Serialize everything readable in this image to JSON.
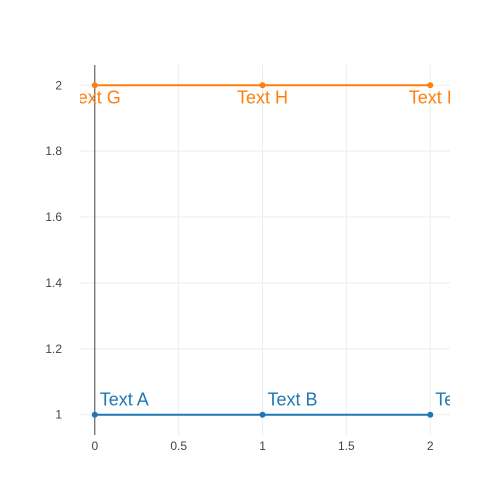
{
  "chart_data": {
    "type": "line",
    "title": "",
    "xlabel": "",
    "ylabel": "",
    "xlim": [
      -0.0882,
      2.1176
    ],
    "ylim": [
      0.9384,
      2.0615
    ],
    "x_ticks": [
      0,
      0.5,
      1,
      1.5,
      2
    ],
    "x_tick_labels": [
      "0",
      "0.5",
      "1",
      "1.5",
      "2"
    ],
    "y_ticks": [
      1,
      1.2,
      1.4,
      1.6,
      1.8,
      2
    ],
    "y_tick_labels": [
      "1",
      "1.2",
      "1.4",
      "1.6",
      "1.8",
      "2"
    ],
    "grid": true,
    "legend": false,
    "series": [
      {
        "color": "#1f77b4",
        "text_position": "top right",
        "points": [
          {
            "x": 0,
            "y": 1,
            "text": "Text A"
          },
          {
            "x": 1,
            "y": 1,
            "text": "Text B"
          },
          {
            "x": 2,
            "y": 1,
            "text": "Text C"
          }
        ]
      },
      {
        "color": "#ff7f0e",
        "text_position": "bottom center",
        "points": [
          {
            "x": 0,
            "y": 2,
            "text": "Text G"
          },
          {
            "x": 1,
            "y": 2,
            "text": "Text H"
          },
          {
            "x": 2,
            "y": 2,
            "text": "Text I"
          }
        ]
      }
    ]
  },
  "colors": {
    "grid": "#eeeeee",
    "zero_line": "#444444",
    "tick_text": "#444444",
    "background": "#ffffff"
  }
}
